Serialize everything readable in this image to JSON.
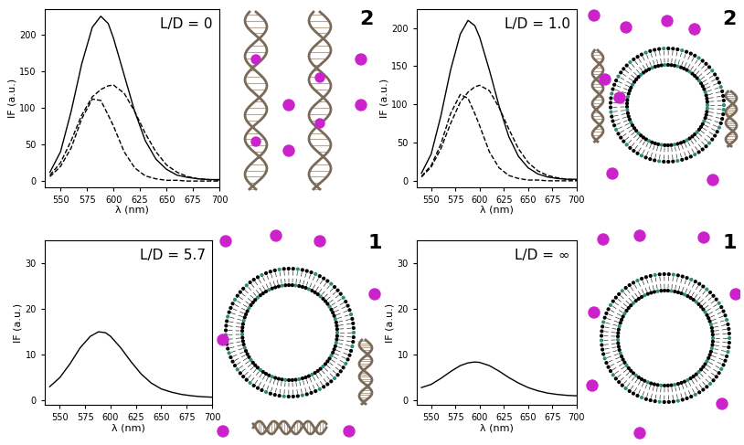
{
  "chart_data": [
    {
      "type": "line",
      "annotation": "L/D = 0",
      "x_label": "λ (nm)",
      "y_label": "IF (a.u.)",
      "xlim": [
        535,
        700
      ],
      "xticks": [
        550,
        575,
        600,
        625,
        650,
        675,
        700
      ],
      "ylim": [
        -8,
        235
      ],
      "yticks": [
        0,
        50,
        100,
        150,
        200
      ],
      "x": [
        540,
        550,
        560,
        570,
        580,
        588,
        595,
        600,
        610,
        620,
        630,
        640,
        650,
        660,
        670,
        680,
        690,
        700
      ],
      "series": [
        {
          "color": "#000000",
          "line_style": "solid",
          "values": [
            12,
            40,
            95,
            160,
            210,
            225,
            215,
            195,
            145,
            95,
            55,
            30,
            16,
            8,
            5,
            3,
            2,
            2
          ]
        },
        {
          "color": "#000000",
          "line_style": "dashed",
          "values": [
            6,
            20,
            45,
            85,
            112,
            110,
            90,
            75,
            40,
            18,
            7,
            3,
            1,
            1,
            0,
            0,
            0,
            0
          ]
        },
        {
          "color": "#000000",
          "line_style": "dashed",
          "values": [
            8,
            25,
            55,
            90,
            115,
            125,
            130,
            131,
            120,
            95,
            65,
            40,
            22,
            12,
            6,
            3,
            2,
            1
          ]
        }
      ]
    },
    {
      "type": "line",
      "annotation": "L/D = 1.0",
      "x_label": "λ (nm)",
      "y_label": "IF (a.u.)",
      "xlim": [
        535,
        700
      ],
      "xticks": [
        550,
        575,
        600,
        625,
        650,
        675,
        700
      ],
      "ylim": [
        -8,
        225
      ],
      "yticks": [
        0,
        50,
        100,
        150,
        200
      ],
      "x": [
        540,
        550,
        560,
        570,
        580,
        588,
        595,
        600,
        610,
        620,
        630,
        640,
        650,
        660,
        670,
        680,
        690,
        700
      ],
      "series": [
        {
          "color": "#000000",
          "line_style": "solid",
          "values": [
            10,
            35,
            85,
            145,
            192,
            210,
            203,
            188,
            145,
            98,
            58,
            32,
            17,
            9,
            5,
            3,
            2,
            2
          ]
        },
        {
          "color": "#000000",
          "line_style": "dashed",
          "values": [
            6,
            20,
            48,
            88,
            113,
            108,
            88,
            72,
            38,
            17,
            7,
            3,
            1,
            1,
            0,
            0,
            0,
            0
          ]
        },
        {
          "color": "#000000",
          "line_style": "dashed",
          "values": [
            5,
            18,
            42,
            75,
            103,
            116,
            123,
            125,
            118,
            96,
            68,
            42,
            24,
            13,
            7,
            4,
            2,
            1
          ]
        }
      ]
    },
    {
      "type": "line",
      "annotation": "L/D = 5.7",
      "x_label": "λ (nm)",
      "y_label": "IF (a.u.)",
      "xlim": [
        535,
        700
      ],
      "xticks": [
        550,
        575,
        600,
        625,
        650,
        675,
        700
      ],
      "ylim": [
        -1,
        35
      ],
      "yticks": [
        0,
        10,
        20,
        30
      ],
      "x": [
        540,
        550,
        560,
        570,
        580,
        588,
        595,
        600,
        610,
        620,
        630,
        640,
        650,
        660,
        670,
        680,
        690,
        700
      ],
      "series": [
        {
          "color": "#000000",
          "line_style": "solid",
          "values": [
            3,
            5,
            8,
            11.5,
            14,
            15,
            14.8,
            14,
            11.5,
            8.5,
            5.8,
            3.8,
            2.5,
            1.8,
            1.3,
            1,
            0.8,
            0.7
          ]
        }
      ]
    },
    {
      "type": "line",
      "annotation": "L/D = ∞",
      "x_label": "λ (nm)",
      "y_label": "IF (a.u.)",
      "xlim": [
        535,
        700
      ],
      "xticks": [
        550,
        575,
        600,
        625,
        650,
        675,
        700
      ],
      "ylim": [
        -1,
        35
      ],
      "yticks": [
        0,
        10,
        20,
        30
      ],
      "x": [
        540,
        550,
        560,
        570,
        580,
        588,
        595,
        600,
        610,
        620,
        630,
        640,
        650,
        660,
        670,
        680,
        690,
        700
      ],
      "series": [
        {
          "color": "#000000",
          "line_style": "solid",
          "values": [
            2.8,
            3.5,
            4.8,
            6.3,
            7.6,
            8.2,
            8.4,
            8.3,
            7.6,
            6.4,
            5,
            3.8,
            2.8,
            2.1,
            1.6,
            1.3,
            1.1,
            1
          ]
        }
      ]
    }
  ],
  "schemes": [
    {
      "label": "2"
    },
    {
      "label": "2"
    },
    {
      "label": "1"
    },
    {
      "label": "1"
    }
  ]
}
